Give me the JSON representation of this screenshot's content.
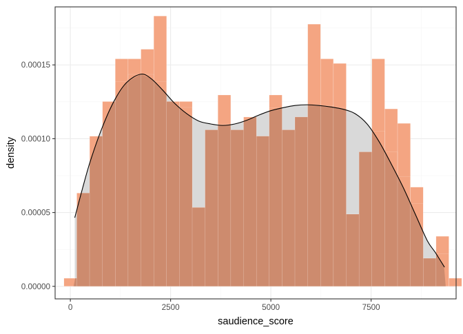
{
  "chart_data": {
    "type": "histogram",
    "title": "",
    "xlabel": "saudience_score",
    "ylabel": "density",
    "xlim": [
      -380,
      9620
    ],
    "ylim": [
      -8.5e-06,
      0.0001893
    ],
    "x_ticks": [
      0,
      2500,
      5000,
      7500
    ],
    "x_tick_labels": [
      "0",
      "2500",
      "5000",
      "7500"
    ],
    "y_ticks": [
      0.0,
      5e-05,
      0.0001,
      0.00015
    ],
    "y_tick_labels": [
      "0.00000",
      "0.00005",
      "0.00010",
      "0.00015"
    ],
    "grid": true,
    "legend": "none",
    "histogram": {
      "bin_width": 320,
      "bin_start": -160,
      "fill_color": "#F4A582",
      "overlay_color": "#CD8B6E",
      "edge_color": "#FFFFFF",
      "values": [
        5.5e-06,
        6.32e-05,
        0.0001017,
        0.0001252,
        0.0001541,
        0.0001541,
        0.0001606,
        0.0001831,
        0.0001252,
        0.0001252,
        5.34e-05,
        0.000106,
        0.0001296,
        0.000106,
        0.0001147,
        0.0001017,
        0.0001296,
        0.000106,
        0.0001147,
        0.0001776,
        0.0001541,
        0.000151,
        4.89e-05,
        9.11e-05,
        0.0001541,
        0.0001202,
        0.0001104,
        6.72e-05,
        1.9e-05,
        3.39e-05,
        5.5e-06
      ]
    },
    "density": {
      "fill_color": "#D9D9D9",
      "line_color": "#000000",
      "x": [
        110,
        300,
        500,
        800,
        1100,
        1400,
        1750,
        2000,
        2300,
        2600,
        2900,
        3200,
        3500,
        3800,
        4100,
        4400,
        4700,
        5000,
        5300,
        5600,
        5900,
        6200,
        6500,
        6800,
        7100,
        7400,
        7700,
        8000,
        8300,
        8600,
        8900,
        9100,
        9330
      ],
      "y": [
        4.65e-05,
        6.6e-05,
        8.5e-05,
        0.000108,
        0.000126,
        0.000138,
        0.0001437,
        0.000141,
        0.000133,
        0.000124,
        0.000117,
        0.000112,
        0.00011,
        0.000109,
        0.00011,
        0.0001125,
        0.000116,
        0.000119,
        0.000121,
        0.0001225,
        0.000123,
        0.0001225,
        0.0001215,
        0.00012,
        0.000117,
        0.00011,
        9.8e-05,
        8.3e-05,
        6.7e-05,
        4.9e-05,
        3.1e-05,
        2.3e-05,
        1.3e-05
      ]
    }
  },
  "colors": {
    "panel_bg": "#FFFFFF",
    "grid_major": "#EBEBEB",
    "grid_minor": "#F5F5F5",
    "axis_text": "#4D4D4D",
    "title_text": "#000000",
    "panel_border": "#333333"
  }
}
